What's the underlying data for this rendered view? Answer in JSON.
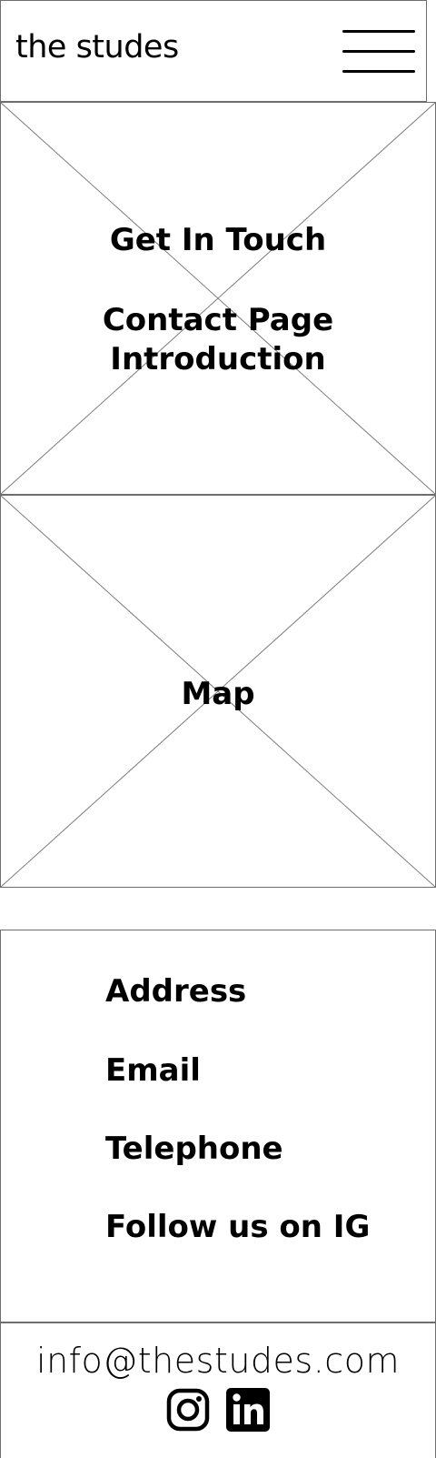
{
  "header": {
    "brand": "the studes",
    "menu_icon": "hamburger-menu-icon"
  },
  "intro": {
    "title": "Get In Touch",
    "subtitle_line1": "Contact Page",
    "subtitle_line2": "Introduction"
  },
  "map": {
    "label": "Map"
  },
  "contact": {
    "items": [
      {
        "label": "Address"
      },
      {
        "label": "Email"
      },
      {
        "label": "Telephone"
      },
      {
        "label": "Follow us on IG"
      }
    ]
  },
  "footer": {
    "email": "info@thestudes.com",
    "social": [
      {
        "icon": "instagram-icon"
      },
      {
        "icon": "linkedin-icon"
      }
    ]
  },
  "colors": {
    "border": "#6e6e6e",
    "text": "#000000",
    "background": "#ffffff"
  }
}
